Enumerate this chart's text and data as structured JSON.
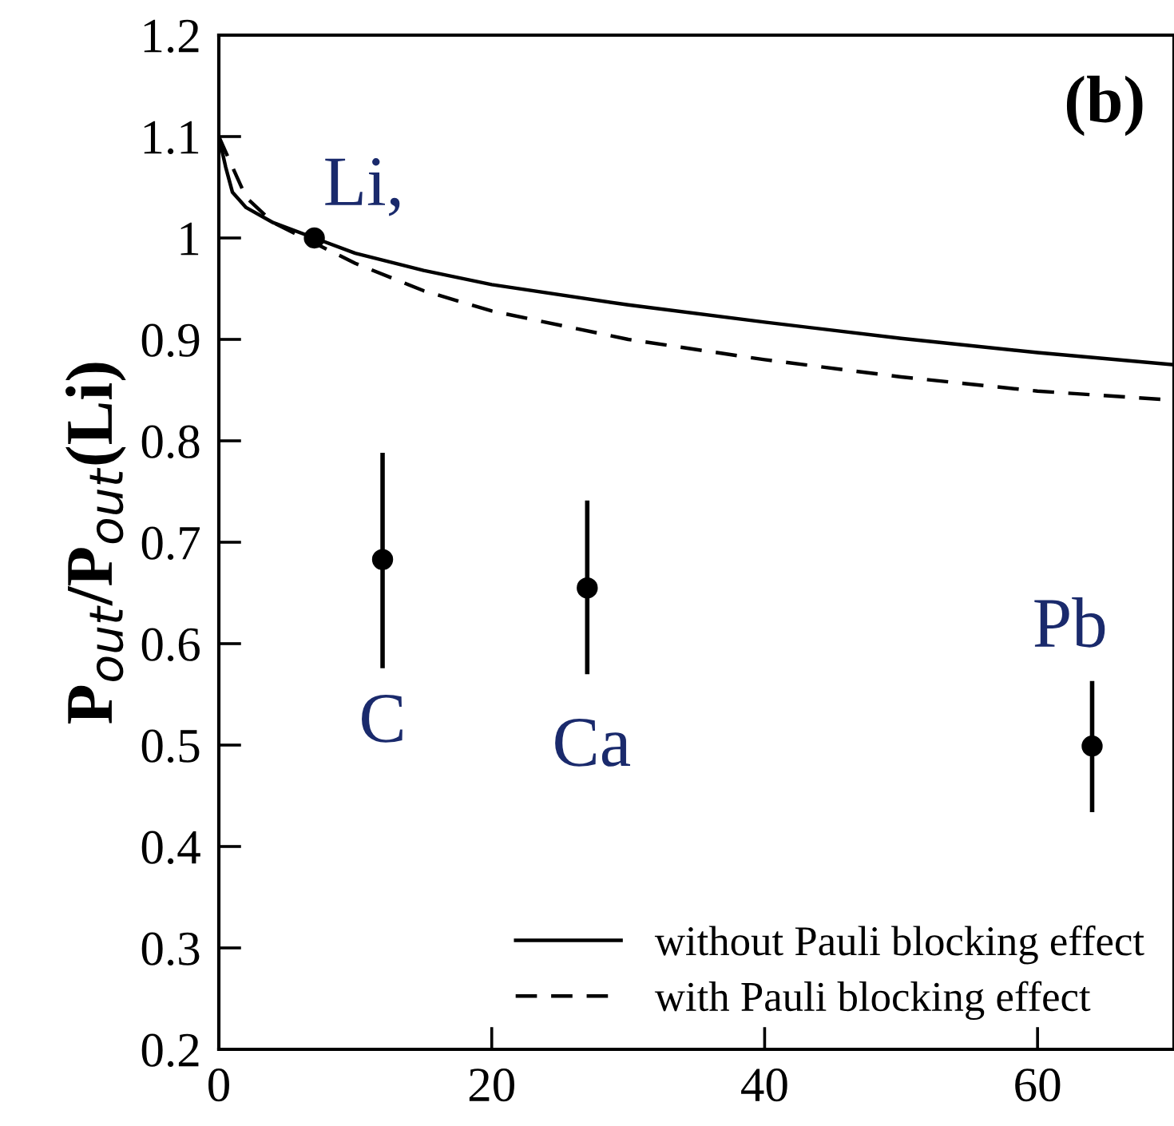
{
  "chart_data": {
    "type": "line",
    "title": "(b)",
    "ylabel": "P$_{out}$/P$_{out}$(Li)",
    "xlim": [
      0,
      70
    ],
    "xticks": [
      0,
      20,
      40,
      60
    ],
    "ylim": [
      0.2,
      1.2
    ],
    "yticks": [
      0.2,
      0.3,
      0.4,
      0.5,
      0.6,
      0.7,
      0.8,
      0.9,
      1,
      1.1,
      1.2
    ],
    "grid": false,
    "legend": "bottom right",
    "marker": "none",
    "series": [
      {
        "name": "without Pauli blocking effect",
        "color": "#000000",
        "line_style": "solid",
        "x": [
          0,
          0.5,
          1,
          2,
          4,
          7,
          10,
          15,
          20,
          30,
          40,
          50,
          60,
          70
        ],
        "values": [
          1.1,
          1.07,
          1.045,
          1.03,
          1.015,
          1.0,
          0.985,
          0.968,
          0.954,
          0.934,
          0.917,
          0.901,
          0.887,
          0.875
        ]
      },
      {
        "name": "with Pauli blocking effect",
        "color": "#000000",
        "line_style": "dashed",
        "x": [
          0,
          0.5,
          1,
          2,
          4,
          7,
          10,
          15,
          20,
          30,
          40,
          50,
          60,
          70
        ],
        "values": [
          1.1,
          1.085,
          1.07,
          1.04,
          1.015,
          0.995,
          0.975,
          0.948,
          0.928,
          0.9,
          0.88,
          0.863,
          0.849,
          0.84
        ]
      },
      {
        "type": "scatter",
        "color": "#000000",
        "marker": "circle",
        "x": [
          7,
          12,
          27,
          64
        ],
        "values": [
          1.0,
          0.683,
          0.655,
          0.499
        ],
        "errors": [
          null,
          [
            0.578,
            0.786
          ],
          [
            0.572,
            0.739
          ],
          [
            0.436,
            0.561
          ]
        ]
      }
    ],
    "annotations": [
      {
        "text": "Li,",
        "x": 7,
        "y": 1.0
      },
      {
        "text": "C",
        "x": 12,
        "y": 0.683
      },
      {
        "text": "Ca",
        "x": 27,
        "y": 0.655
      },
      {
        "text": "Pb",
        "x": 64,
        "y": 0.499
      }
    ]
  }
}
